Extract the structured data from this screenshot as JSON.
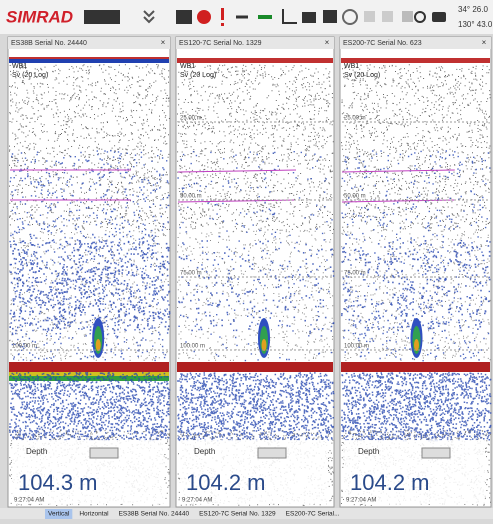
{
  "toolbar": {
    "brand": "SIMRAD",
    "coords": [
      "34° 26.0",
      "130° 43.0"
    ]
  },
  "panels": [
    {
      "title": "ES38B Serial No. 24440",
      "beam": "WB1",
      "sv": "Sv (20 Log)",
      "depth_labels": [
        "100.00 m"
      ],
      "depth_caption": "Depth",
      "depth_value": "104.3 m",
      "time": "9:27:04 AM"
    },
    {
      "title": "ES120-7C Serial No. 1329",
      "beam": "WB1",
      "sv": "Sv (20 Log)",
      "depth_labels": [
        "25.00 m",
        "50.00 m",
        "75.00 m",
        "100.00 m"
      ],
      "depth_caption": "Depth",
      "depth_value": "104.2 m",
      "time": "9:27:04 AM"
    },
    {
      "title": "ES200-7C Serial No. 623",
      "beam": "WB1",
      "sv": "Sv (20 Log)",
      "depth_labels": [
        "25.00 m",
        "50.00 m",
        "75.00 m",
        "100.00 m"
      ],
      "depth_caption": "Depth",
      "depth_value": "104.2 m",
      "time": "9:27:04 AM"
    }
  ],
  "tabs": [
    "Vertical",
    "Horizontal",
    "ES38B Serial No. 24440",
    "ES120-7C Serial No. 1329",
    "ES200-7C Serial..."
  ]
}
